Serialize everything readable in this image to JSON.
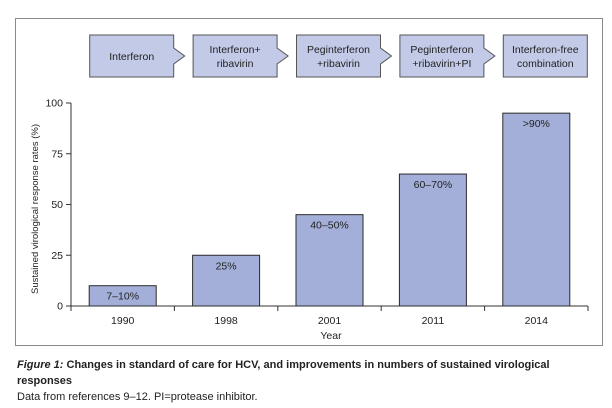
{
  "stages": [
    {
      "lines": [
        "Interferon"
      ],
      "arrow": true
    },
    {
      "lines": [
        "Interferon+",
        "ribavirin"
      ],
      "arrow": true
    },
    {
      "lines": [
        "Peginterferon",
        "+ribavirin"
      ],
      "arrow": true
    },
    {
      "lines": [
        "Peginterferon",
        "+ribavirin+PI"
      ],
      "arrow": true
    },
    {
      "lines": [
        "Interferon-free",
        "combination"
      ],
      "arrow": false
    }
  ],
  "chart_data": {
    "type": "bar",
    "categories": [
      "1990",
      "1998",
      "2001",
      "2011",
      "2014"
    ],
    "values": [
      10,
      25,
      45,
      65,
      95
    ],
    "value_labels": [
      "7–10%",
      "25%",
      "40–50%",
      "60–70%",
      ">90%"
    ],
    "xlabel": "Year",
    "ylabel": "Sustained virological response rates (%)",
    "yticks": [
      0,
      25,
      50,
      75,
      100
    ],
    "ylim": [
      0,
      100
    ],
    "grid": false
  },
  "colors": {
    "bar_fill": "#a3afd8",
    "bar_stroke": "#2b2b2b",
    "stage_fill": "#c3cae8",
    "stage_stroke": "#555555"
  },
  "caption": {
    "figure_label": "Figure 1:",
    "title": "Changes in standard of care for HCV, and improvements in numbers of sustained virological responses",
    "note": "Data from references 9–12. PI=protease inhibitor."
  }
}
